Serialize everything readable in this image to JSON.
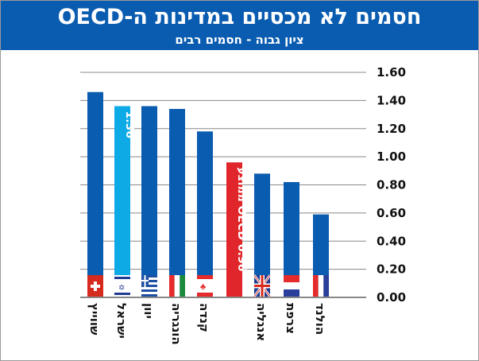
{
  "chart_data": {
    "type": "bar",
    "title": "חסמים לא מכסיים במדינות ה-OECD",
    "subtitle": "ציון גבוה - חסמים רבים",
    "categories": [
      "שווייץ",
      "ישראל",
      "יוון",
      "הונגריה",
      "קנדה",
      "ממוצע OECD",
      "אנגליה",
      "צרפת",
      "הולנד"
    ],
    "values": [
      1.46,
      1.36,
      1.36,
      1.34,
      1.18,
      0.96,
      0.88,
      0.82,
      0.59
    ],
    "data_labels": {
      "1": "1.36",
      "5": "ממוצע OECD 0.96"
    },
    "flags": [
      "switzerland",
      "israel",
      "greece",
      "italy-like",
      "canada",
      "oecd",
      "uk",
      "netherlands-like",
      "france-like"
    ],
    "ylim": [
      0,
      1.6
    ],
    "yticks": [
      "0.00",
      "0.20",
      "0.40",
      "0.60",
      "0.80",
      "1.00",
      "1.20",
      "1.40",
      "1.60"
    ],
    "ytick_values": [
      0,
      0.2,
      0.4,
      0.6,
      0.8,
      1.0,
      1.2,
      1.4,
      1.6
    ],
    "y_axis_side": "right",
    "grid": true,
    "colors": {
      "bar": "#0a5cb0",
      "highlight": "#0eaae6",
      "average": "#e0262b",
      "header": "#0a5cb0",
      "grid": "#888888"
    }
  }
}
